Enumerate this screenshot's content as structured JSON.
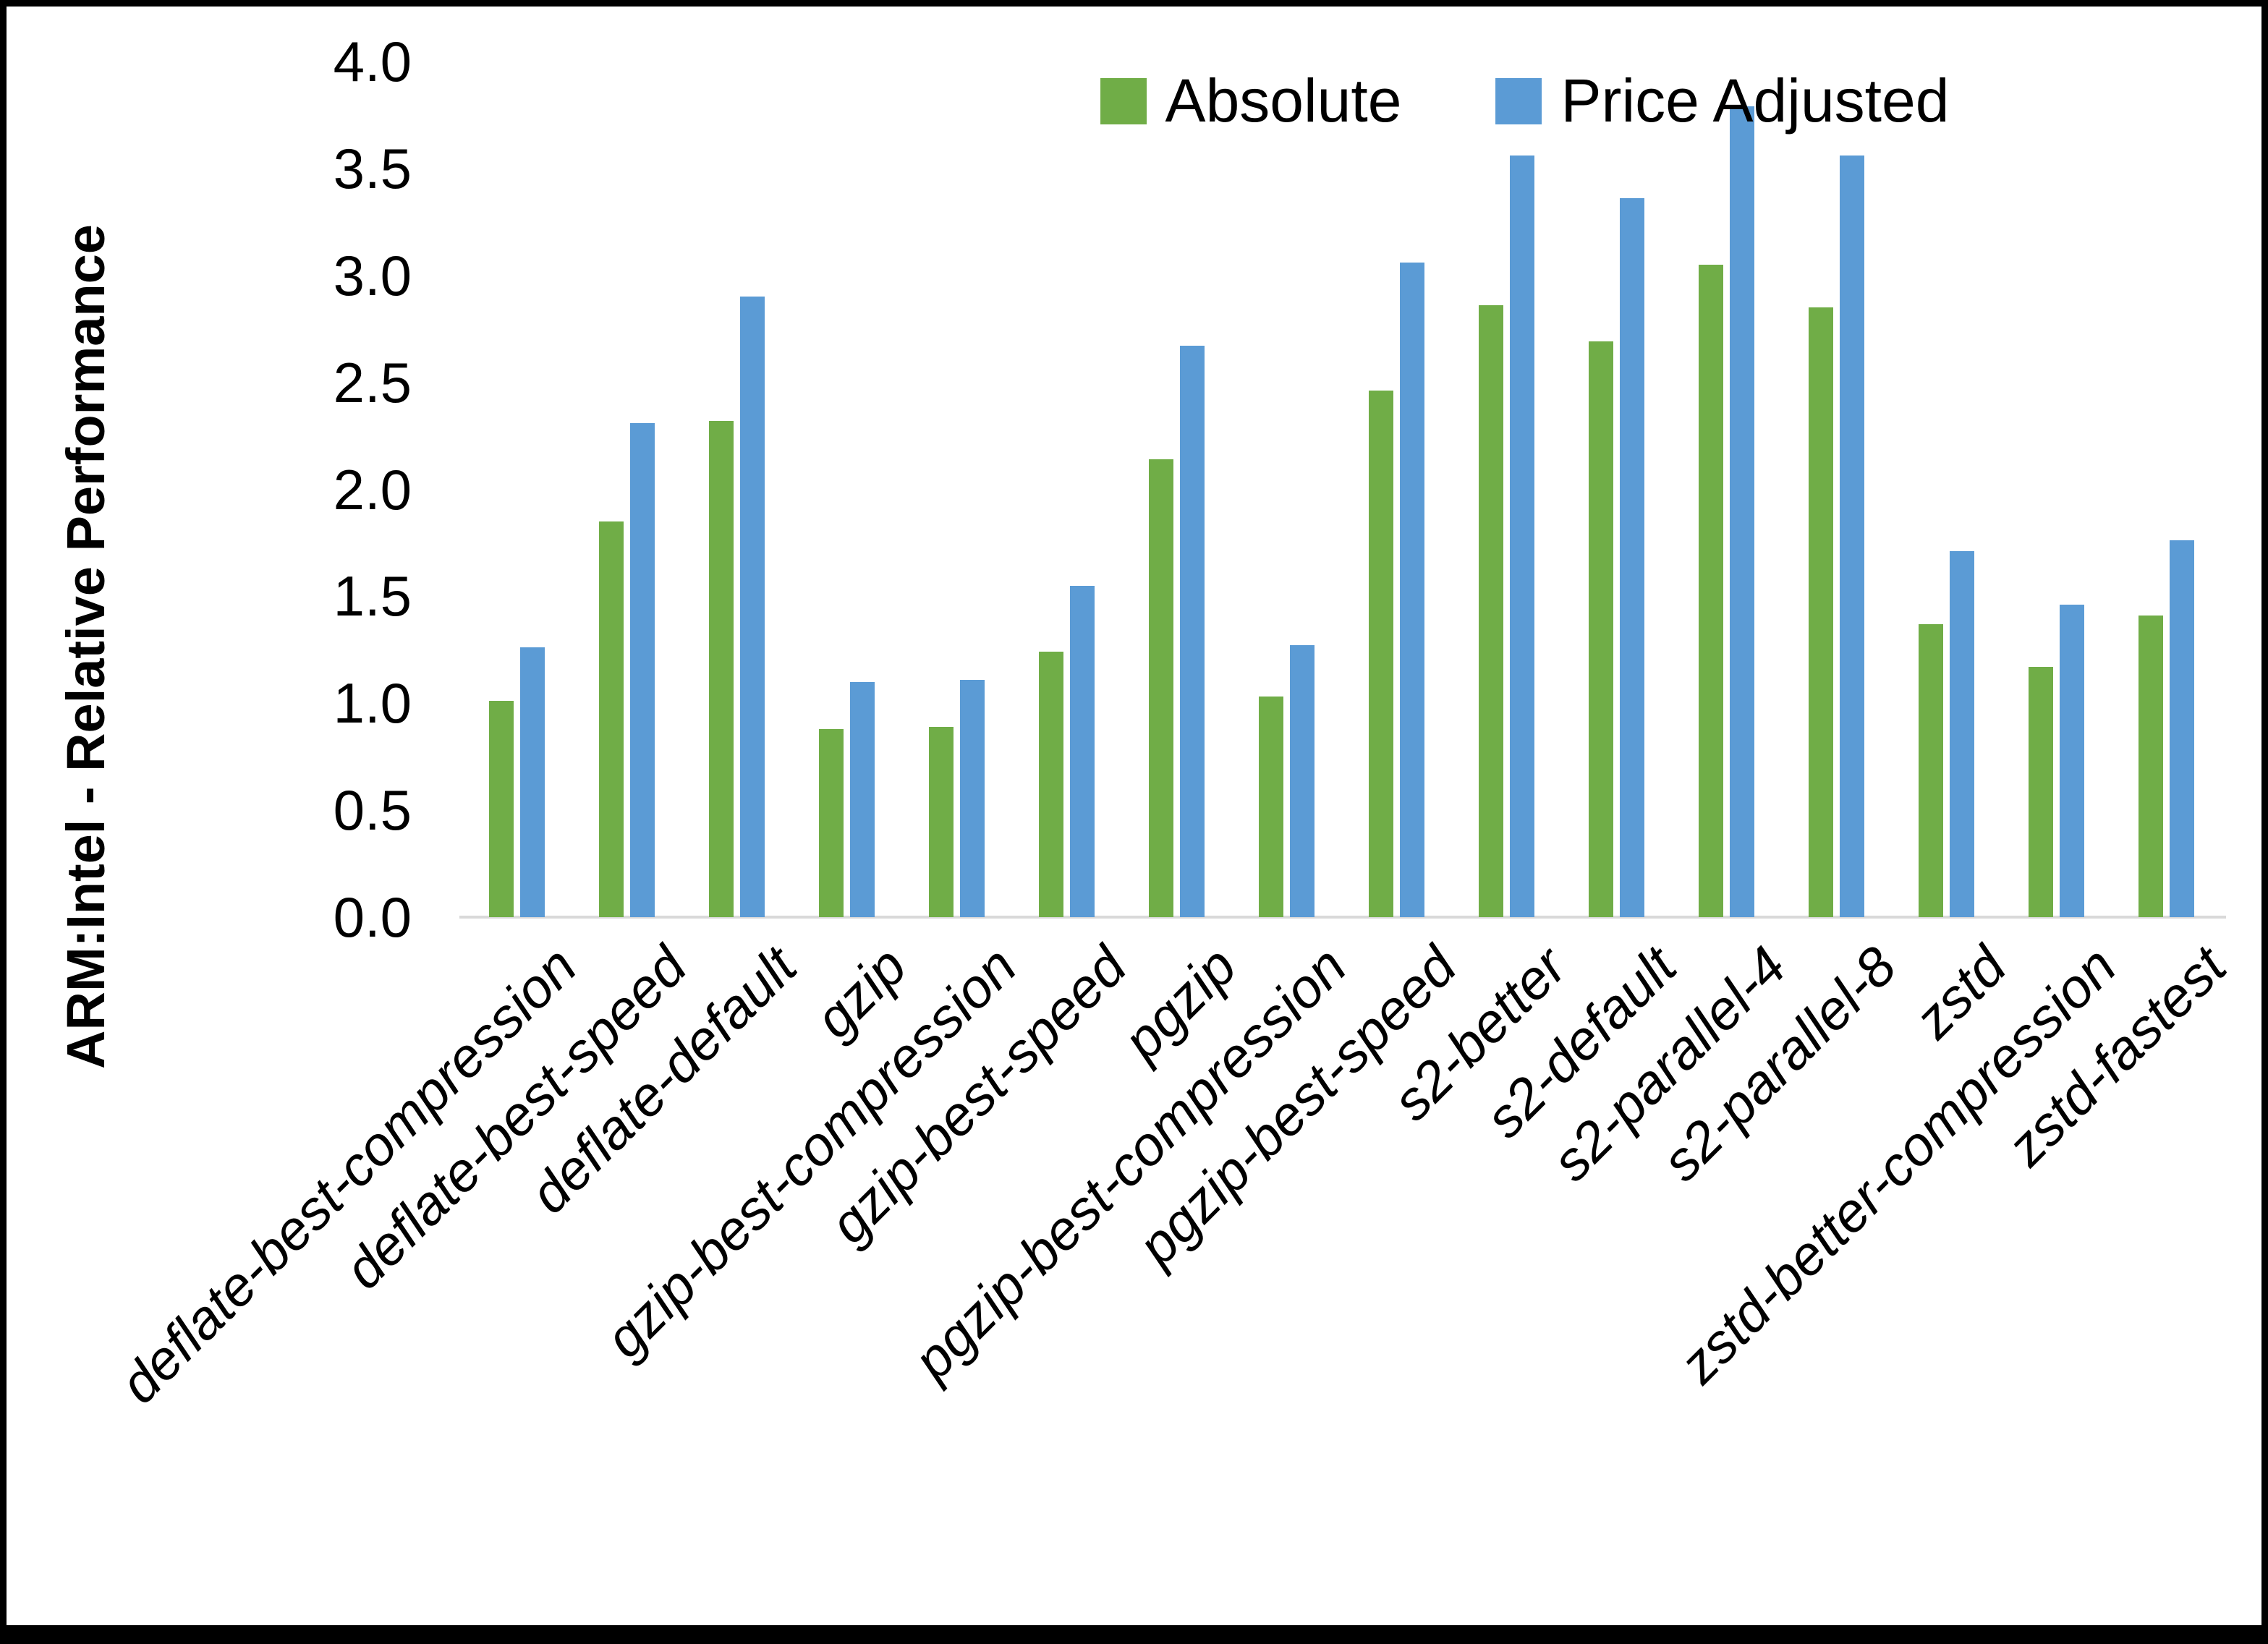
{
  "y_axis": {
    "title": "ARM:Intel - Relative Performance",
    "tick_labels": [
      "4.0",
      "3.5",
      "3.0",
      "2.5",
      "2.0",
      "1.5",
      "1.0",
      "0.5",
      "0.0"
    ]
  },
  "legend": {
    "items": [
      {
        "label": "Absolute",
        "color": "#70AD47"
      },
      {
        "label": "Price Adjusted",
        "color": "#5B9BD5"
      }
    ]
  },
  "chart_data": {
    "type": "bar",
    "title": "",
    "xlabel": "",
    "ylabel": "ARM:Intel - Relative Performance",
    "ylim": [
      0.0,
      4.0
    ],
    "ytick_step": 0.5,
    "grid": false,
    "legend_position": "top-center",
    "bar_colors": {
      "Absolute": "#70AD47",
      "Price Adjusted": "#5B9BD5"
    },
    "categories": [
      "deflate-best-compression",
      "deflate-best-speed",
      "deflate-default",
      "gzip",
      "gzip-best-compression",
      "gzip-best-speed",
      "pgzip",
      "pgzip-best-compression",
      "pgzip-best-speed",
      "s2-better",
      "s2-default",
      "s2-parallel-4",
      "s2-parallel-8",
      "zstd",
      "zstd-better-compression",
      "zstd-fastest"
    ],
    "series": [
      {
        "name": "Absolute",
        "color": "#70AD47",
        "values": [
          1.01,
          1.85,
          2.32,
          0.88,
          0.89,
          1.24,
          2.14,
          1.03,
          2.46,
          2.86,
          2.69,
          3.05,
          2.85,
          1.37,
          1.17,
          1.41
        ]
      },
      {
        "name": "Price Adjusted",
        "color": "#5B9BD5",
        "values": [
          1.26,
          2.31,
          2.9,
          1.1,
          1.11,
          1.55,
          2.67,
          1.27,
          3.06,
          3.56,
          3.36,
          3.79,
          3.56,
          1.71,
          1.46,
          1.76
        ]
      }
    ]
  }
}
